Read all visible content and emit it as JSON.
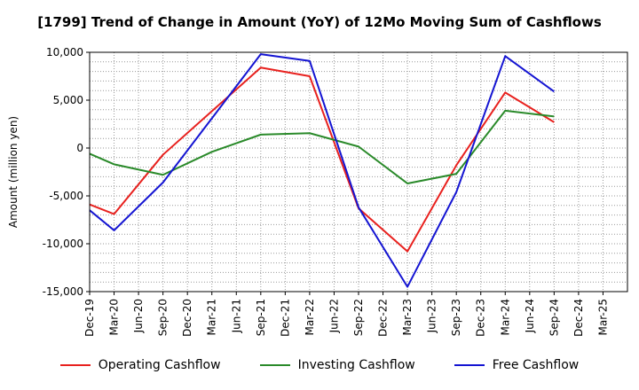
{
  "chart_data": {
    "type": "line",
    "title": "[1799]  Trend of Change in Amount (YoY) of 12Mo Moving Sum of Cashflows",
    "xlabel": "",
    "ylabel": "Amount (million yen)",
    "ylim": [
      -15000,
      10000
    ],
    "yticks": [
      10000,
      5000,
      0,
      -5000,
      -10000,
      -15000
    ],
    "ytick_labels": [
      "10,000",
      "5,000",
      "0",
      "-5,000",
      "-10,000",
      "-15,000"
    ],
    "categories": [
      "Dec-19",
      "Mar-20",
      "Jun-20",
      "Sep-20",
      "Dec-20",
      "Mar-21",
      "Jun-21",
      "Sep-21",
      "Dec-21",
      "Mar-22",
      "Jun-22",
      "Sep-22",
      "Dec-22",
      "Mar-23",
      "Jun-23",
      "Sep-23",
      "Dec-23",
      "Mar-24",
      "Jun-24",
      "Sep-24",
      "Dec-24",
      "Mar-25"
    ],
    "grid": true,
    "legend_position": "bottom",
    "series": [
      {
        "name": "Operating Cashflow",
        "color": "#e8211e",
        "values": [
          -5900,
          -6900,
          null,
          -700,
          null,
          null,
          null,
          8400,
          null,
          7500,
          null,
          -6300,
          null,
          -10800,
          null,
          -1800,
          null,
          5800,
          null,
          2700,
          null,
          null
        ]
      },
      {
        "name": "Investing Cashflow",
        "color": "#2a8a2a",
        "values": [
          -600,
          -1700,
          null,
          -2800,
          null,
          -400,
          null,
          1400,
          null,
          1550,
          null,
          150,
          null,
          -3700,
          null,
          -2700,
          null,
          3900,
          null,
          3300,
          null,
          null
        ]
      },
      {
        "name": "Free Cashflow",
        "color": "#1414d2",
        "values": [
          -6500,
          -8600,
          null,
          -3600,
          null,
          null,
          null,
          9800,
          null,
          9100,
          null,
          -6200,
          null,
          -14500,
          null,
          -4600,
          null,
          9600,
          null,
          5900,
          null,
          null
        ]
      }
    ]
  }
}
